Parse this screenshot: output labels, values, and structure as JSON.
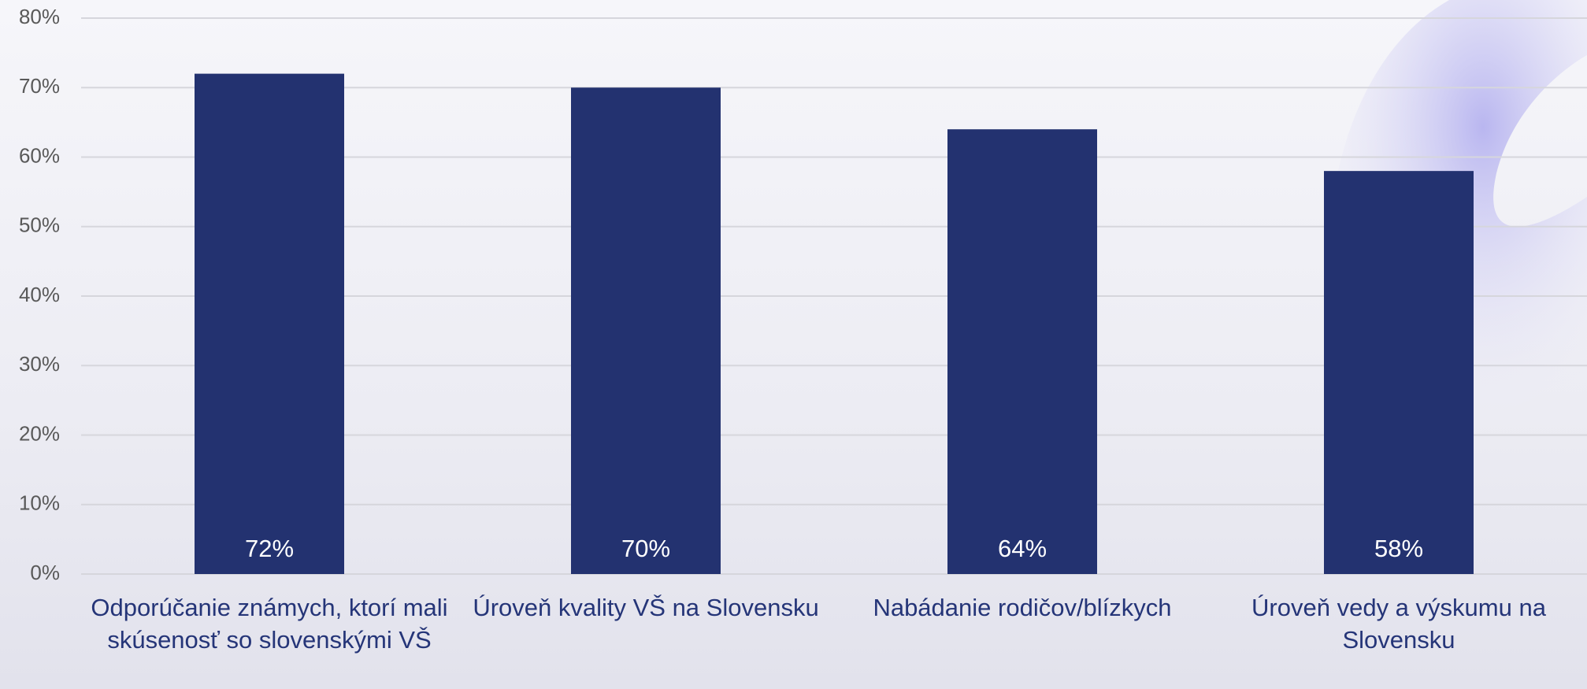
{
  "chart_data": {
    "type": "bar",
    "categories": [
      "Odporúčanie známych, ktorí mali skúsenosť so slovenskými VŠ",
      "Úroveň kvality VŠ na Slovensku",
      "Nabádanie rodičov/blízkych",
      "Úroveň vedy a výskumu na Slovensku"
    ],
    "values": [
      72,
      70,
      64,
      58
    ],
    "value_labels": [
      "72%",
      "70%",
      "64%",
      "58%"
    ],
    "color": "#233270",
    "ylim": [
      0,
      80
    ],
    "yticks": [
      {
        "value": 0,
        "label": "0%"
      },
      {
        "value": 10,
        "label": "10%"
      },
      {
        "value": 20,
        "label": "20%"
      },
      {
        "value": 30,
        "label": "30%"
      },
      {
        "value": 40,
        "label": "40%"
      },
      {
        "value": 50,
        "label": "50%"
      },
      {
        "value": 60,
        "label": "60%"
      },
      {
        "value": 70,
        "label": "70%"
      },
      {
        "value": 80,
        "label": "80%"
      }
    ],
    "grid": true
  }
}
